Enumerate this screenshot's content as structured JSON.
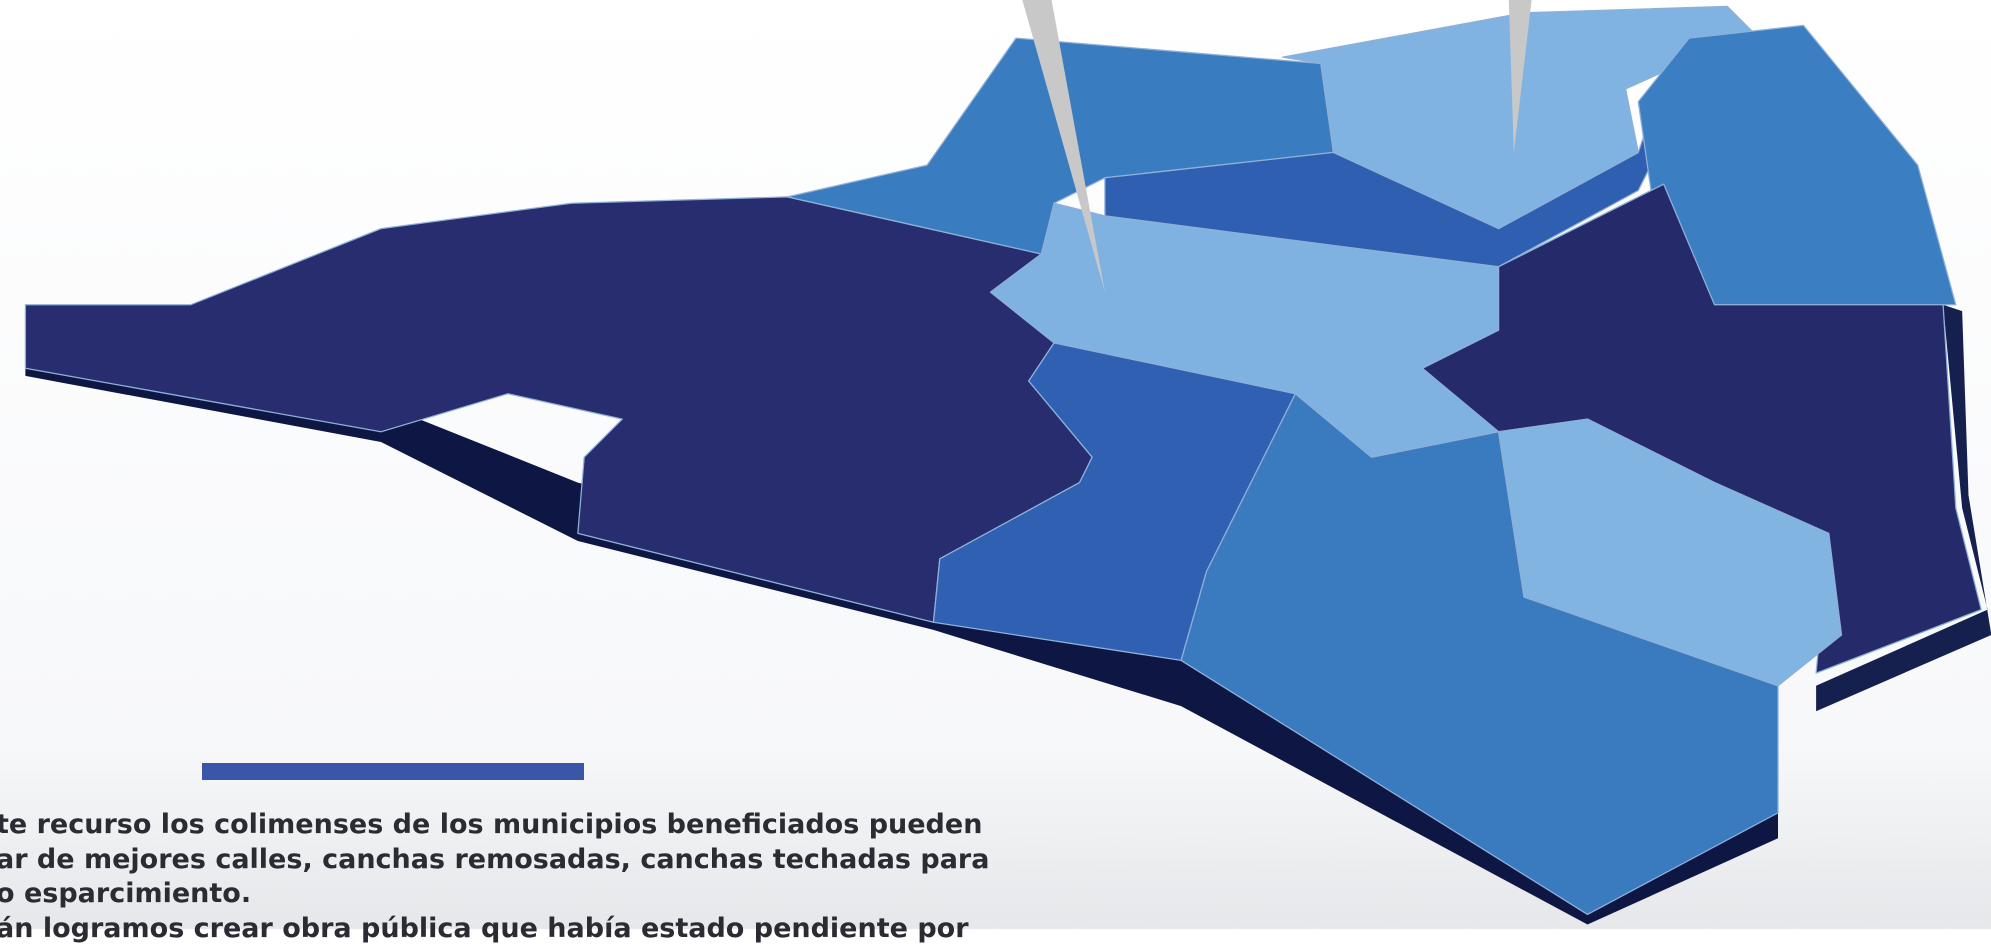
{
  "paragraph": {
    "lines": [
      "te recurso los colimenses de los municipios beneficiados pueden",
      "ar de mejores calles, canchas remosadas, canchas techadas para",
      "o esparcimiento.",
      "án logramos crear obra pública que había estado pendiente por"
    ]
  }
}
